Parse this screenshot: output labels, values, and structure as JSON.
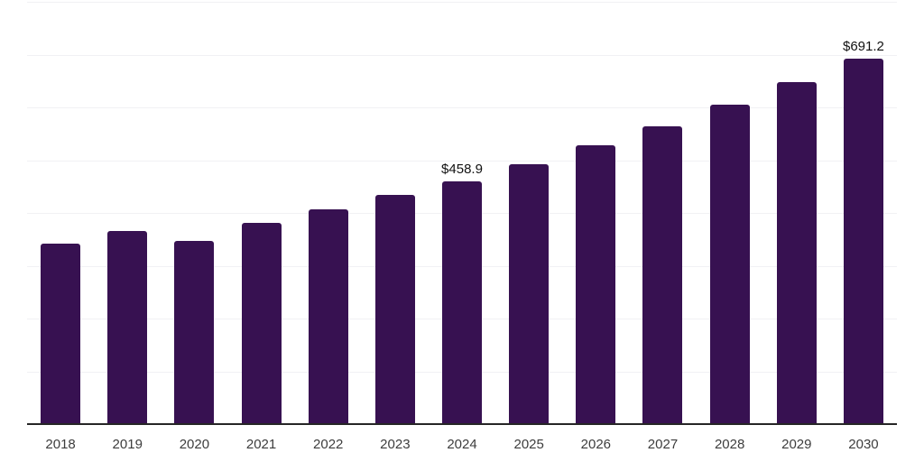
{
  "chart_data": {
    "type": "bar",
    "title": "",
    "xlabel": "",
    "ylabel": "",
    "categories": [
      "2018",
      "2019",
      "2020",
      "2021",
      "2022",
      "2023",
      "2024",
      "2025",
      "2026",
      "2027",
      "2028",
      "2029",
      "2030"
    ],
    "values": [
      340.1,
      363.9,
      345.5,
      379.2,
      404.6,
      433.0,
      458.9,
      491.3,
      526.1,
      562.4,
      603.2,
      645.8,
      691.2
    ],
    "value_prefix": "$",
    "data_labels": [
      {
        "category": "2024",
        "label": "$458.9"
      },
      {
        "category": "2030",
        "label": "$691.2"
      }
    ],
    "ylim": [
      0,
      800
    ],
    "grid": {
      "horizontal": true,
      "interval": 100,
      "color": "#f1f1f4"
    },
    "legend": "none",
    "colors": {
      "bar": "#371151",
      "axis_line": "#262626",
      "tick_label": "#3d3d3d",
      "data_label": "#111111",
      "background": "#ffffff"
    }
  }
}
